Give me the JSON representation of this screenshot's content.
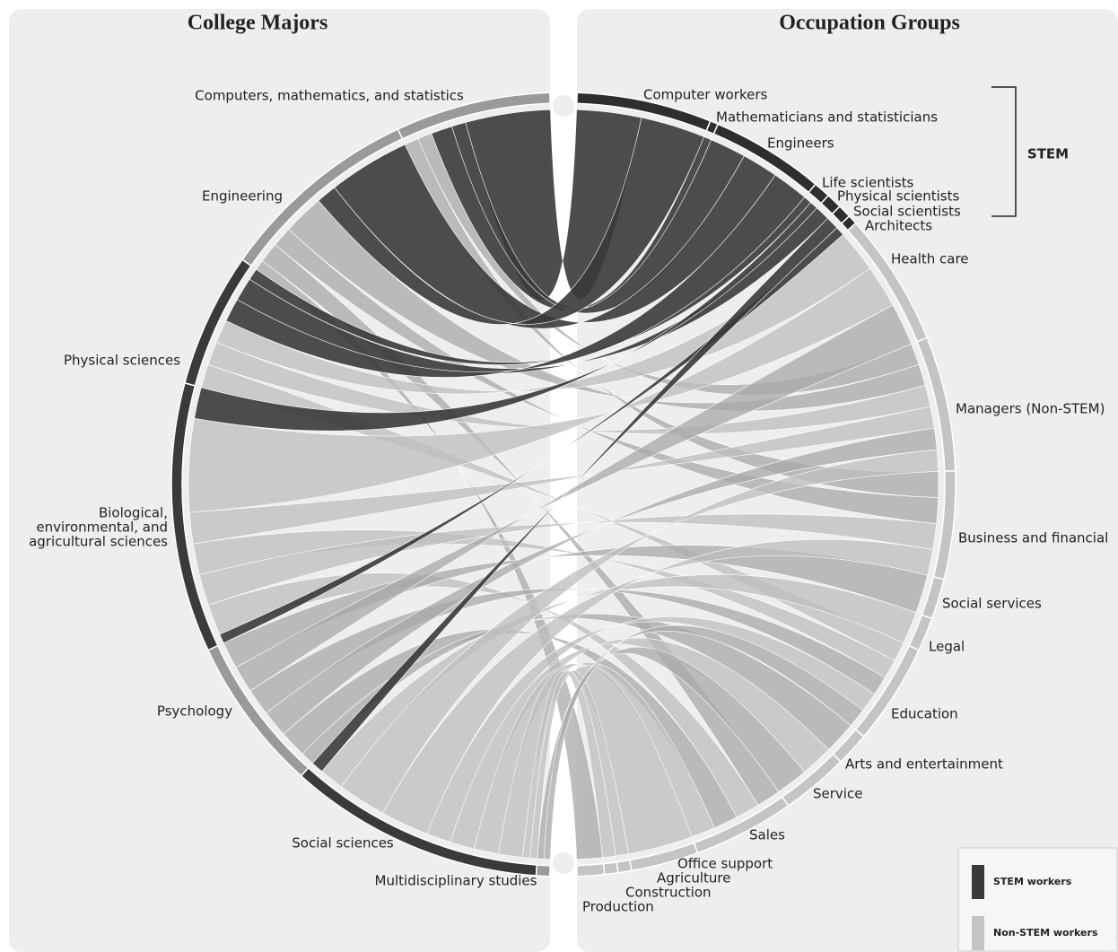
{
  "titles": {
    "left": "College Majors",
    "right": "Occupation Groups"
  },
  "majors": [
    "Computers, mathematics, and statistics",
    "Engineering",
    "Physical sciences",
    [
      "Biological,",
      "environmental, and",
      "agricultural  sciences"
    ],
    "Psychology",
    "Social sciences",
    "Multidisciplinary studies"
  ],
  "occupations": [
    "Computer workers",
    "Mathematicians and statisticians",
    "Engineers",
    "Life scientists",
    "Physical scientists",
    "Social scientists",
    "Architects",
    "Health care",
    "Managers (Non-STEM)",
    "Business and financial",
    "Social services",
    "Legal",
    "Education",
    "Arts and entertainment",
    "Service",
    "Sales",
    "Office support",
    "Agriculture",
    "Construction",
    "Production"
  ],
  "bracket_label": "STEM",
  "legend": [
    "STEM workers",
    "Non-STEM workers"
  ]
}
